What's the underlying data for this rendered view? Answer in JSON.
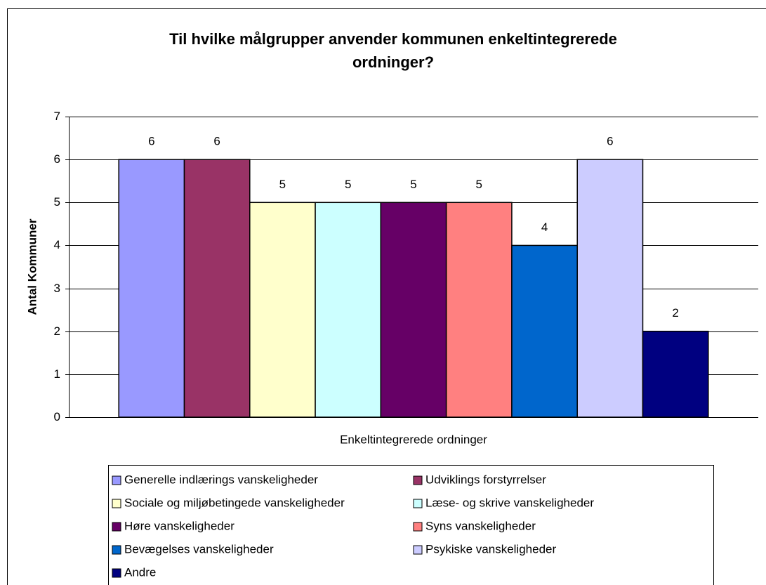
{
  "chart_data": {
    "type": "bar",
    "title": [
      "Til hvilke målgrupper anvender kommunen enkeltintegrerede",
      "ordninger?"
    ],
    "y_label": "Antal Kommuner",
    "categories": [
      "Enkeltintegrerede ordninger"
    ],
    "series": [
      {
        "name": "Generelle indlærings vanskeligheder",
        "color": "#9999ff",
        "values": [
          6
        ]
      },
      {
        "name": "Udviklings forstyrrelser",
        "color": "#993366",
        "values": [
          6
        ]
      },
      {
        "name": "Sociale og miljøbetingede vanskeligheder",
        "color": "#ffffcc",
        "values": [
          5
        ]
      },
      {
        "name": "Læse- og skrive vanskeligheder",
        "color": "#ccffff",
        "values": [
          5
        ]
      },
      {
        "name": "Høre vanskeligheder",
        "color": "#660066",
        "values": [
          5
        ]
      },
      {
        "name": "Syns vanskeligheder",
        "color": "#ff8080",
        "values": [
          5
        ]
      },
      {
        "name": "Bevægelses vanskeligheder",
        "color": "#0066cc",
        "values": [
          4
        ]
      },
      {
        "name": "Psykiske vanskeligheder",
        "color": "#ccccff",
        "values": [
          6
        ]
      },
      {
        "name": "Andre",
        "color": "#000080",
        "values": [
          2
        ]
      }
    ],
    "ylim": [
      0,
      7
    ],
    "yticks": [
      0,
      1,
      2,
      3,
      4,
      5,
      6,
      7
    ],
    "grid": true,
    "legend": "bottom"
  }
}
